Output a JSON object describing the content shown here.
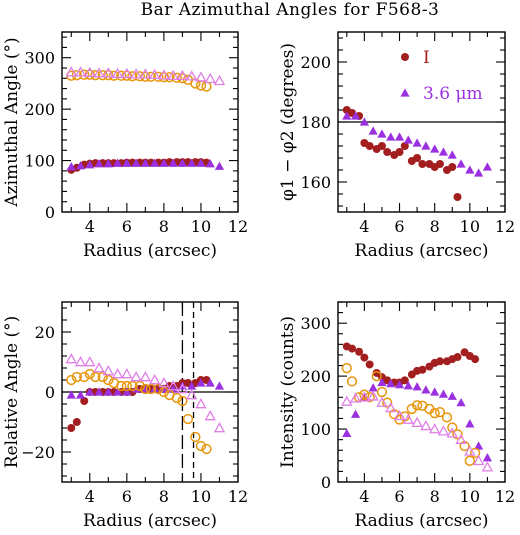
{
  "title": "Bar Azimuthal Angles for F568-3",
  "colors": {
    "red": "#a31f1f",
    "violet": "#9b30e0",
    "orange": "#e8960c",
    "pink": "#e07fe8"
  },
  "chart_data": [
    {
      "type": "scatter",
      "title": "",
      "xlabel": "Radius (arcsec)",
      "ylabel": "Azimuthal Angle (°)",
      "xlim": [
        2.5,
        12
      ],
      "ylim": [
        0,
        350
      ],
      "xticks": [
        "4",
        "6",
        "8",
        "10",
        "12"
      ],
      "yticks": [
        "0",
        "100",
        "200",
        "300"
      ],
      "series": [
        {
          "marker": "filled-circle",
          "color": "#a31f1f",
          "x": [
            3.0,
            3.3,
            3.7,
            4.0,
            4.3,
            4.7,
            5.0,
            5.3,
            5.7,
            6.0,
            6.3,
            6.7,
            7.0,
            7.3,
            7.7,
            8.0,
            8.3,
            8.7,
            9.0,
            9.3,
            9.7,
            10.0,
            10.3
          ],
          "y": [
            82,
            86,
            92,
            94,
            95,
            95,
            95,
            95,
            95,
            96,
            96,
            96,
            96,
            96,
            96,
            96,
            97,
            97,
            97,
            97,
            97,
            97,
            96
          ]
        },
        {
          "marker": "filled-triangle",
          "color": "#9b30e0",
          "x": [
            3.0,
            3.5,
            4.0,
            4.5,
            5.0,
            5.5,
            6.0,
            6.5,
            7.0,
            7.5,
            8.0,
            8.5,
            9.0,
            9.5,
            10.0,
            10.5,
            11.0
          ],
          "y": [
            88,
            90,
            92,
            94,
            94,
            95,
            95,
            95,
            95,
            95,
            95,
            95,
            95,
            95,
            95,
            94,
            89
          ]
        },
        {
          "marker": "open-circle",
          "color": "#e8960c",
          "x": [
            3.0,
            3.3,
            3.7,
            4.0,
            4.3,
            4.7,
            5.0,
            5.3,
            5.7,
            6.0,
            6.3,
            6.7,
            7.0,
            7.3,
            7.7,
            8.0,
            8.3,
            8.7,
            9.0,
            9.3,
            9.7,
            10.0,
            10.3
          ],
          "y": [
            265,
            266,
            267,
            267,
            266,
            266,
            266,
            265,
            265,
            265,
            264,
            264,
            263,
            263,
            263,
            262,
            262,
            261,
            260,
            257,
            250,
            246,
            244
          ]
        },
        {
          "marker": "open-triangle",
          "color": "#e07fe8",
          "x": [
            3.0,
            3.5,
            4.0,
            4.5,
            5.0,
            5.5,
            6.0,
            6.5,
            7.0,
            7.5,
            8.0,
            8.5,
            9.0,
            9.5,
            10.0,
            10.5,
            11.0
          ],
          "y": [
            272,
            272,
            271,
            270,
            270,
            269,
            269,
            268,
            268,
            267,
            266,
            265,
            265,
            264,
            262,
            259,
            255
          ]
        }
      ]
    },
    {
      "type": "scatter",
      "title": "",
      "xlabel": "Radius (arcsec)",
      "ylabel": "φ1 − φ2 (degrees)",
      "xlim": [
        2.5,
        12
      ],
      "ylim": [
        150,
        210
      ],
      "xticks": [
        "4",
        "6",
        "8",
        "10",
        "12"
      ],
      "yticks": [
        "160",
        "180",
        "200"
      ],
      "hline": 180,
      "legend": [
        {
          "label": "I",
          "color": "#a31f1f",
          "marker": "filled-circle"
        },
        {
          "label": "3.6 μm",
          "color": "#9b30e0",
          "marker": "filled-triangle"
        }
      ],
      "series": [
        {
          "marker": "filled-circle",
          "color": "#a31f1f",
          "x": [
            3.0,
            3.3,
            3.7,
            4.0,
            4.3,
            4.7,
            5.0,
            5.3,
            5.7,
            6.0,
            6.3,
            6.7,
            7.0,
            7.3,
            7.7,
            8.0,
            8.3,
            8.7,
            9.0,
            9.3
          ],
          "y": [
            184,
            183,
            182,
            173,
            172,
            171,
            172,
            170,
            169,
            170,
            172,
            167,
            168,
            166,
            166,
            165,
            166,
            164,
            165,
            155
          ]
        },
        {
          "marker": "filled-triangle",
          "color": "#9b30e0",
          "x": [
            3.0,
            3.5,
            4.0,
            4.5,
            5.0,
            5.5,
            6.0,
            6.5,
            7.0,
            7.5,
            8.0,
            8.5,
            9.0,
            9.5,
            10.0,
            10.5,
            11.0
          ],
          "y": [
            182,
            182,
            180,
            177,
            176,
            175,
            175,
            174,
            173,
            172,
            171,
            170,
            169,
            166,
            164,
            163,
            165
          ]
        }
      ]
    },
    {
      "type": "scatter",
      "title": "",
      "xlabel": "Radius (arcsec)",
      "ylabel": "Relative Angle (°)",
      "xlim": [
        2.5,
        12
      ],
      "ylim": [
        -30,
        30
      ],
      "xticks": [
        "4",
        "6",
        "8",
        "10",
        "12"
      ],
      "yticks": [
        "−20",
        "0",
        "20"
      ],
      "hline": 0,
      "vlines": [
        {
          "x": 9.0,
          "style": "long-dash"
        },
        {
          "x": 9.6,
          "style": "short-dash"
        }
      ],
      "series": [
        {
          "marker": "filled-circle",
          "color": "#a31f1f",
          "x": [
            3.0,
            3.3,
            3.7,
            4.0,
            4.3,
            4.7,
            5.0,
            5.3,
            5.7,
            6.0,
            6.3,
            6.7,
            7.0,
            7.3,
            7.7,
            8.0,
            8.3,
            8.7,
            9.0,
            9.3,
            9.7,
            10.0,
            10.3
          ],
          "y": [
            -12,
            -10,
            -3,
            0,
            0,
            0,
            0,
            0,
            0,
            0,
            0,
            1,
            1,
            1,
            1,
            1,
            2,
            2,
            3,
            3,
            3,
            4,
            4
          ]
        },
        {
          "marker": "filled-triangle",
          "color": "#9b30e0",
          "x": [
            3.0,
            3.5,
            4.0,
            4.5,
            5.0,
            5.5,
            6.0,
            6.5,
            7.0,
            7.5,
            8.0,
            8.5,
            9.0,
            9.5,
            10.0,
            10.5,
            11.0
          ],
          "y": [
            -1,
            -1,
            0,
            0,
            0,
            0,
            0,
            1,
            1,
            1,
            1,
            1,
            2,
            2,
            3,
            3,
            2
          ]
        },
        {
          "marker": "open-circle",
          "color": "#e8960c",
          "x": [
            3.0,
            3.3,
            3.7,
            4.0,
            4.3,
            4.7,
            5.0,
            5.3,
            5.7,
            6.0,
            6.3,
            6.7,
            7.0,
            7.3,
            7.7,
            8.0,
            8.3,
            8.7,
            9.0,
            9.3,
            9.7,
            10.0,
            10.3
          ],
          "y": [
            4,
            5,
            5,
            6,
            5,
            5,
            4,
            3,
            2,
            2,
            2,
            2,
            1,
            1,
            1,
            0,
            -1,
            -2,
            -3,
            -9,
            -15,
            -18,
            -19
          ]
        },
        {
          "marker": "open-triangle",
          "color": "#e07fe8",
          "x": [
            3.0,
            3.5,
            4.0,
            4.5,
            5.0,
            5.5,
            6.0,
            6.5,
            7.0,
            7.5,
            8.0,
            8.5,
            9.0,
            9.5,
            10.0,
            10.5,
            11.0
          ],
          "y": [
            11,
            10,
            10,
            8,
            7,
            6,
            6,
            5,
            5,
            4,
            3,
            2,
            1,
            -1,
            -4,
            -8,
            -12
          ]
        }
      ]
    },
    {
      "type": "scatter",
      "title": "",
      "xlabel": "Radius (arcsec)",
      "ylabel": "Intensity (counts)",
      "xlim": [
        2.5,
        12
      ],
      "ylim": [
        0,
        340
      ],
      "xticks": [
        "4",
        "6",
        "8",
        "10",
        "12"
      ],
      "yticks": [
        "0",
        "100",
        "200",
        "300"
      ],
      "series": [
        {
          "marker": "filled-circle",
          "color": "#a31f1f",
          "x": [
            3.0,
            3.3,
            3.7,
            4.0,
            4.3,
            4.7,
            5.0,
            5.3,
            5.7,
            6.0,
            6.3,
            6.7,
            7.0,
            7.3,
            7.7,
            8.0,
            8.3,
            8.7,
            9.0,
            9.3,
            9.7,
            10.0,
            10.3
          ],
          "y": [
            256,
            252,
            246,
            235,
            222,
            206,
            198,
            192,
            188,
            188,
            192,
            203,
            210,
            212,
            218,
            225,
            228,
            228,
            232,
            236,
            245,
            238,
            232
          ]
        },
        {
          "marker": "filled-triangle",
          "color": "#9b30e0",
          "x": [
            3.0,
            3.5,
            4.0,
            4.5,
            5.0,
            5.5,
            6.0,
            6.5,
            7.0,
            7.5,
            8.0,
            8.5,
            9.0,
            9.5,
            10.0,
            10.5,
            11.0
          ],
          "y": [
            92,
            128,
            160,
            178,
            188,
            186,
            184,
            182,
            180,
            174,
            170,
            166,
            162,
            150,
            110,
            68,
            46
          ]
        },
        {
          "marker": "open-circle",
          "color": "#e8960c",
          "x": [
            3.0,
            3.3,
            3.7,
            4.0,
            4.3,
            4.7,
            5.0,
            5.3,
            5.7,
            6.0,
            6.3,
            6.7,
            7.0,
            7.3,
            7.7,
            8.0,
            8.3,
            8.7,
            9.0,
            9.3,
            9.7,
            10.0,
            10.3
          ],
          "y": [
            215,
            190,
            160,
            165,
            160,
            200,
            170,
            150,
            128,
            118,
            124,
            138,
            145,
            144,
            138,
            130,
            132,
            122,
            103,
            90,
            68,
            40,
            55
          ]
        },
        {
          "marker": "open-triangle",
          "color": "#e07fe8",
          "x": [
            3.0,
            3.5,
            4.0,
            4.5,
            5.0,
            5.5,
            6.0,
            6.5,
            7.0,
            7.5,
            8.0,
            8.5,
            9.0,
            9.5,
            10.0,
            10.5,
            11.0
          ],
          "y": [
            152,
            158,
            160,
            162,
            150,
            140,
            125,
            118,
            112,
            106,
            100,
            96,
            92,
            80,
            58,
            40,
            28
          ]
        }
      ]
    }
  ]
}
